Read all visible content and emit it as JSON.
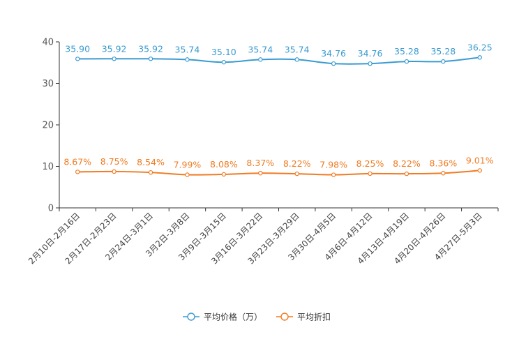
{
  "chart_data": {
    "type": "line",
    "title": "",
    "xlabel": "",
    "ylabel": "",
    "ylim": [
      0,
      40
    ],
    "yticks": [
      0,
      10,
      20,
      30,
      40
    ],
    "grid": false,
    "legend_position": "bottom-center",
    "categories": [
      "2月10日-2月16日",
      "2月17日-2月23日",
      "2月24日-3月1日",
      "3月2日-3月8日",
      "3月9日-3月15日",
      "3月16日-3月22日",
      "3月23日-3月29日",
      "3月30日-4月5日",
      "4月6日-4月12日",
      "4月13日-4月19日",
      "4月20日-4月26日",
      "4月27日-5月3日"
    ],
    "series": [
      {
        "name": "平均价格（万）",
        "color": "#3a9bd1",
        "values": [
          35.9,
          35.92,
          35.92,
          35.74,
          35.1,
          35.74,
          35.74,
          34.76,
          34.76,
          35.28,
          35.28,
          36.25
        ],
        "labels": [
          "35.90",
          "35.92",
          "35.92",
          "35.74",
          "35.10",
          "35.74",
          "35.74",
          "34.76",
          "34.76",
          "35.28",
          "35.28",
          "36.25"
        ]
      },
      {
        "name": "平均折扣",
        "color": "#f07b22",
        "values": [
          8.67,
          8.75,
          8.54,
          7.99,
          8.08,
          8.37,
          8.22,
          7.98,
          8.25,
          8.22,
          8.36,
          9.01
        ],
        "labels": [
          "8.67%",
          "8.75%",
          "8.54%",
          "7.99%",
          "8.08%",
          "8.37%",
          "8.22%",
          "7.98%",
          "8.25%",
          "8.22%",
          "8.36%",
          "9.01%"
        ]
      }
    ]
  }
}
